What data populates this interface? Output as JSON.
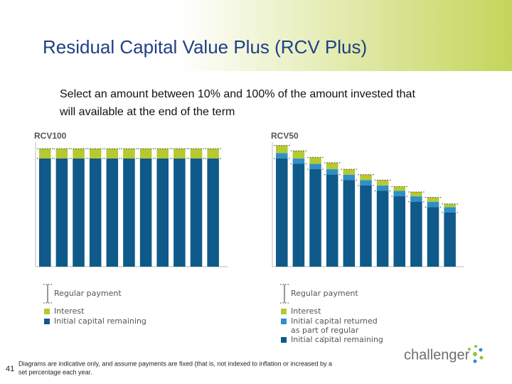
{
  "title": "Residual Capital Value Plus (RCV Plus)",
  "subtitle": [
    "Select an amount between 10% and 100% of the amount invested that",
    "will available at the end of the term"
  ],
  "chart_data": [
    {
      "type": "stacked-bar",
      "title": "RCV100",
      "payment_label": "Regular payment",
      "ylim": [
        0,
        115
      ],
      "series": [
        {
          "name": "Initial capital remaining",
          "color": "#0f5a8a",
          "values": [
            100,
            100,
            100,
            100,
            100,
            100,
            100,
            100,
            100,
            100,
            100
          ]
        },
        {
          "name": "Interest",
          "color": "#b5c930",
          "values": [
            9,
            9,
            9,
            9,
            9,
            9,
            9,
            9,
            9,
            9,
            9
          ]
        }
      ]
    },
    {
      "type": "stacked-bar",
      "title": "RCV50",
      "payment_label": "Regular payment",
      "ylim": [
        0,
        115
      ],
      "series": [
        {
          "name": "Initial capital remaining",
          "color": "#0f5a8a",
          "values": [
            100,
            95,
            90,
            85,
            80,
            75,
            70,
            65,
            60,
            55,
            50
          ]
        },
        {
          "name": "Initial capital returned as part of regular payment",
          "color": "#2f8fc9",
          "values": [
            5,
            5,
            5,
            5,
            5,
            5,
            5,
            5,
            5,
            5,
            5
          ]
        },
        {
          "name": "Interest",
          "color": "#b5c930",
          "values": [
            7,
            7,
            6,
            6,
            5,
            5,
            5,
            4,
            4,
            4,
            3
          ]
        }
      ]
    }
  ],
  "page_number": "41",
  "footnote": [
    "Diagrams are indicative only, and assume payments are fixed (that is, not indexed to inflation or increased by a",
    "set percentage each year."
  ],
  "logo": "challenger"
}
